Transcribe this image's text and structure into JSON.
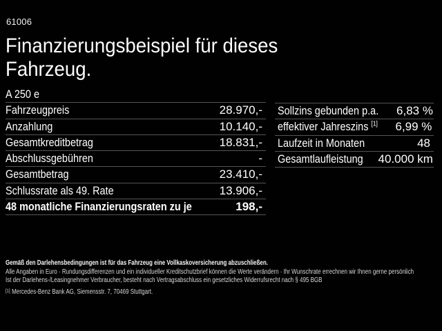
{
  "screen": {
    "code": "61006",
    "title_line1": "Finanzierungsbeispiel für dieses",
    "title_line2": "Fahrzeug."
  },
  "left_table": {
    "header": "A 250 e",
    "rows": [
      {
        "label": "Fahrzeugpreis",
        "value": "28.970,-"
      },
      {
        "label": "Anzahlung",
        "value": "10.140,-"
      },
      {
        "label": "Gesamtkreditbetrag",
        "value": "18.831,-"
      },
      {
        "label": "Abschlussgebühren",
        "value": "-"
      },
      {
        "label": "Gesamtbetrag",
        "value": "23.410,-"
      },
      {
        "label": "Schlussrate als 49. Rate",
        "value": "13.906,-"
      },
      {
        "label": "48 monatliche Finanzierungsraten zu je",
        "value": "198,-"
      }
    ]
  },
  "right_table": {
    "rows": [
      {
        "label": "Sollzins gebunden p.a.",
        "sup": "",
        "value": "6,83 %"
      },
      {
        "label": "effektiver Jahreszins ",
        "sup": "[1]",
        "value": "6,99 %"
      },
      {
        "label": "Laufzeit in Monaten",
        "sup": "",
        "value": "48"
      },
      {
        "label": "Gesamtlaufleistung",
        "sup": "",
        "value": "40.000 km"
      }
    ]
  },
  "footer": {
    "line1": "Gemäß den Darlehensbedingungen ist für das Fahrzeug eine Vollkaskoversicherung abzuschließen.",
    "line2": "Alle Angaben in Euro · Rundungsdifferenzen und ein individueller Kreditschutzbrief können die Werte verändern · Ihr Wunschrate errechnen wir Ihnen gerne persönlich",
    "line3": "Ist der Darlehens-/Leasingnehmer Verbraucher, besteht nach Vertragsabschluss ein gesetzliches Widerrufsrecht nach § 495 BGB",
    "footnote_marker": "[1]",
    "footnote_text": "Mercedes-Benz Bank AG, Siemensstr. 7, 70469 Stuttgart."
  },
  "colors": {
    "background": "#010101",
    "text": "#ffffff",
    "divider": "#565656"
  }
}
